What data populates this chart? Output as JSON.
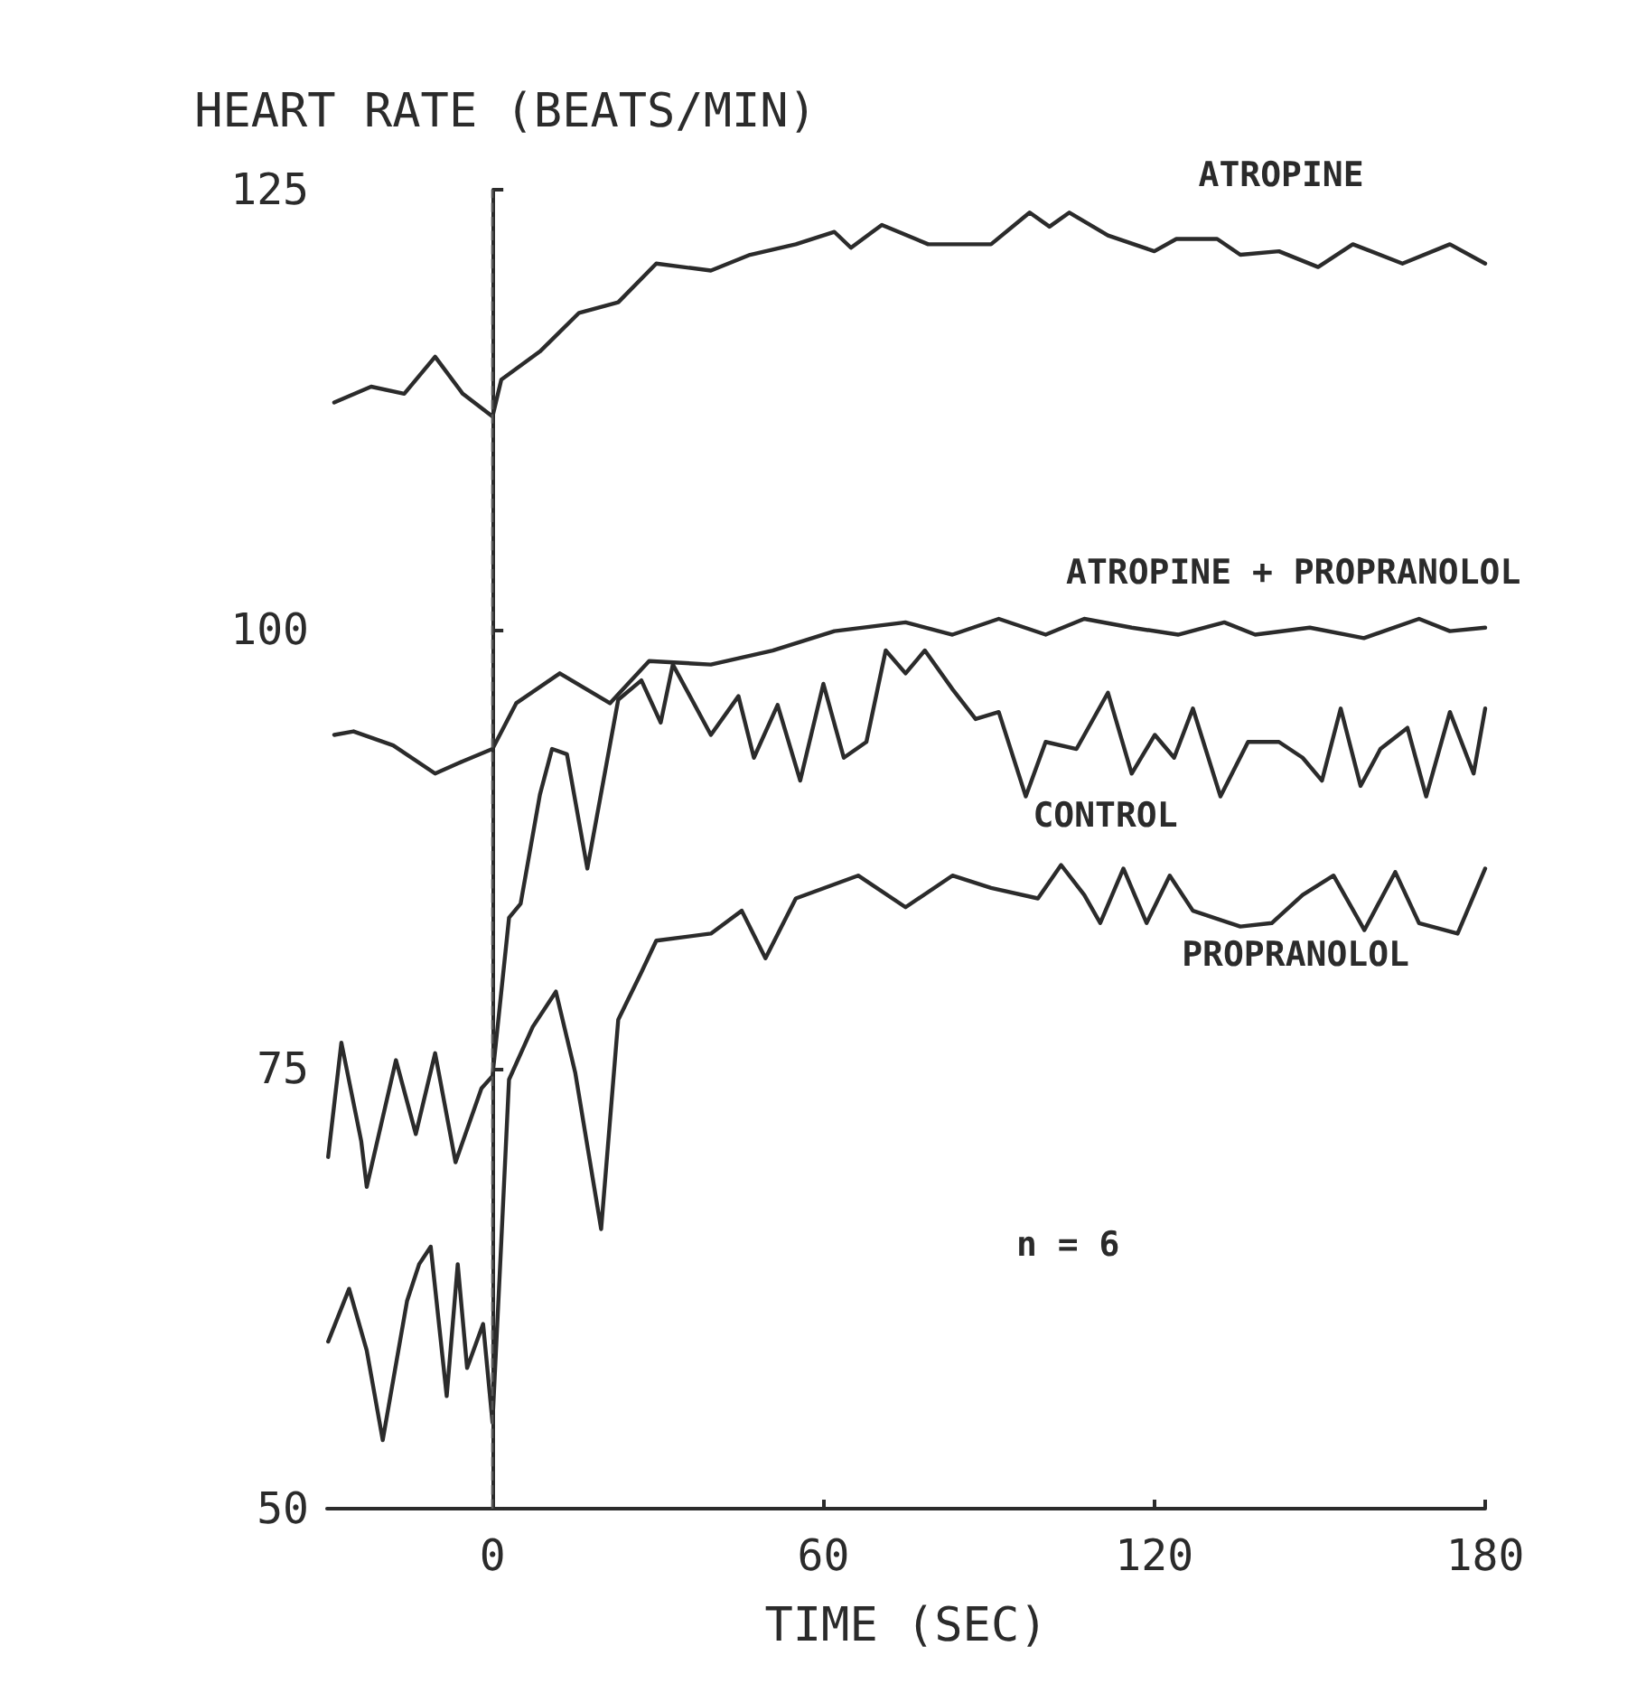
{
  "chart_data": {
    "type": "line",
    "ylabel": "HEART RATE (BEATS/MIN)",
    "xlabel": "TIME (SEC)",
    "xlim": [
      -30,
      180
    ],
    "xticks": [
      0,
      60,
      120,
      180
    ],
    "ylim": [
      50,
      125
    ],
    "yticks": [
      50,
      75,
      100,
      125
    ],
    "grid": false,
    "legend": false,
    "marker": "none",
    "line_style": "solid",
    "ref_lines": [
      {
        "axis": "x",
        "value": 0,
        "line_style": "dashed",
        "color": "#555555"
      }
    ],
    "annotations": [
      "n = 6"
    ],
    "series": [
      {
        "name": "ATROPINE",
        "color": "#2b2b2b",
        "x": [
          -28.7,
          -22,
          -16,
          -10.4,
          -5.4,
          0,
          1.6,
          8.6,
          15.7,
          22.8,
          29.7,
          39.6,
          46.7,
          55,
          62,
          65,
          70.6,
          79,
          90.4,
          97.4,
          101,
          104.6,
          111.6,
          120,
          124,
          131.4,
          135.6,
          142.6,
          149.7,
          156,
          165,
          173.6,
          180
        ],
        "values": [
          112.9,
          113.8,
          113.4,
          115.5,
          113.4,
          112.1,
          114.2,
          115.8,
          118,
          118.6,
          120.8,
          120.4,
          121.3,
          121.9,
          122.6,
          121.7,
          123,
          121.9,
          121.9,
          123.7,
          122.9,
          123.7,
          122.4,
          121.5,
          122.2,
          122.2,
          121.3,
          121.5,
          120.6,
          121.9,
          120.8,
          121.9,
          120.8
        ]
      },
      {
        "name": "ATROPINE + PROPRANOLOL",
        "color": "#2b2b2b",
        "x": [
          -28.7,
          -25.2,
          -18,
          -10.4,
          -5.4,
          0,
          4.3,
          12.2,
          21.3,
          28.4,
          39.6,
          50.8,
          62,
          74.9,
          83.4,
          91.8,
          100.3,
          107.3,
          115.9,
          124.3,
          132.7,
          138.3,
          148.2,
          158,
          168,
          173.6,
          180
        ],
        "values": [
          94.0,
          94.2,
          93.4,
          91.8,
          92.5,
          93.2,
          95.8,
          97.5,
          95.8,
          98.2,
          98.0,
          98.8,
          99.9,
          100.4,
          99.7,
          100.6,
          99.7,
          100.6,
          100.1,
          99.7,
          100.4,
          99.7,
          100.1,
          99.5,
          100.6,
          99.9,
          100.1
        ]
      },
      {
        "name": "CONTROL",
        "color": "#2b2b2b",
        "x": [
          -29.8,
          -27.4,
          -23.8,
          -22.8,
          -17.5,
          -13.9,
          -10.4,
          -6.7,
          -2,
          0,
          3,
          5.1,
          8.6,
          10.8,
          13.5,
          17.2,
          22.8,
          27,
          30.5,
          32.7,
          39.6,
          44.6,
          47.4,
          51.7,
          55.8,
          60,
          63.7,
          67.8,
          71.3,
          74.9,
          78.4,
          83.4,
          87.6,
          91.8,
          96.7,
          100.3,
          105.9,
          111.6,
          115.9,
          120.1,
          123.6,
          127,
          132,
          137,
          142.6,
          146.9,
          150.4,
          153.8,
          157.4,
          161,
          165.9,
          169.3,
          173.6,
          177.9,
          180
        ],
        "values": [
          70.0,
          76.5,
          70.9,
          68.3,
          75.5,
          71.3,
          75.9,
          69.7,
          73.9,
          74.6,
          83.6,
          84.4,
          90.6,
          93.2,
          92.9,
          86.4,
          96.0,
          97.1,
          94.7,
          98.0,
          94.0,
          96.2,
          92.7,
          95.7,
          91.4,
          96.9,
          92.7,
          93.6,
          98.8,
          97.5,
          98.8,
          96.6,
          94.9,
          95.3,
          90.5,
          93.6,
          93.2,
          96.4,
          91.8,
          94.0,
          92.7,
          95.5,
          90.5,
          93.6,
          93.6,
          92.7,
          91.4,
          95.5,
          91.1,
          93.2,
          94.4,
          90.5,
          95.3,
          91.8,
          95.5
        ]
      },
      {
        "name": "PROPRANOLOL",
        "color": "#2b2b2b",
        "x": [
          -29.8,
          -26,
          -22.8,
          -19.9,
          -15.5,
          -13.3,
          -11.2,
          -8.3,
          -6.3,
          -4.6,
          -1.7,
          0,
          1.6,
          3,
          7.3,
          11.5,
          15,
          19.7,
          22.8,
          27,
          29.7,
          39.6,
          45.2,
          49.5,
          55,
          66.3,
          74.9,
          83.4,
          90.4,
          98.9,
          103.1,
          107.3,
          110.2,
          114.4,
          118.6,
          122.8,
          127,
          135.6,
          141.3,
          146.9,
          152.5,
          158.1,
          163.7,
          168,
          175,
          180
        ],
        "values": [
          59.5,
          62.5,
          59.0,
          53.9,
          61.8,
          63.9,
          64.9,
          56.4,
          63.9,
          58.0,
          60.5,
          54.9,
          65.2,
          74.4,
          77.4,
          79.4,
          74.8,
          65.9,
          77.8,
          80.5,
          82.3,
          82.7,
          84.0,
          81.3,
          84.7,
          86.0,
          84.2,
          86.0,
          85.3,
          84.7,
          86.6,
          84.9,
          83.3,
          86.4,
          83.3,
          86.0,
          84.0,
          83.1,
          83.3,
          84.9,
          86.0,
          82.9,
          86.2,
          83.3,
          82.7,
          86.4
        ]
      }
    ]
  }
}
